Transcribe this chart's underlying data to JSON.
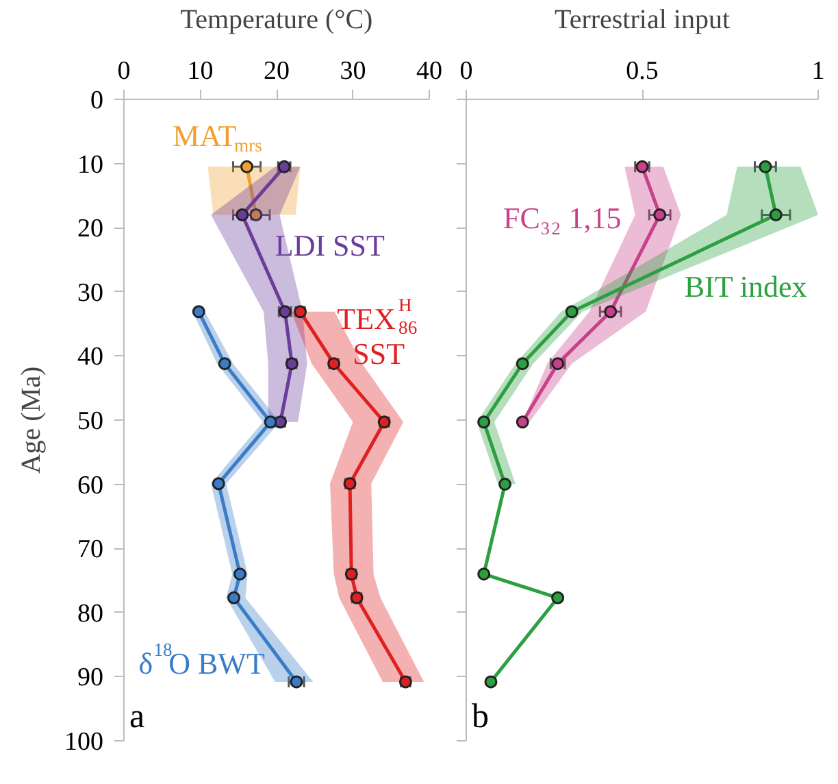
{
  "chart_data": [
    {
      "type": "line",
      "orientation": "horizontal",
      "xlabel": "Temperature (°C)",
      "ylabel": "Age (Ma)",
      "xlim": [
        0,
        40
      ],
      "xticks": [
        0,
        10,
        20,
        30,
        40
      ],
      "ylim": [
        100,
        0
      ],
      "yticks": [
        0,
        10,
        20,
        30,
        40,
        50,
        60,
        70,
        80,
        90,
        100
      ],
      "marker": "circle",
      "series": [
        {
          "name": "MAT$_{mrs}$",
          "color": "#f0a030",
          "x": [
            10.5,
            18.0
          ],
          "values": [
            16.1,
            17.3
          ],
          "errors": [
            1.8,
            1.8
          ],
          "lower": [
            11.0,
            11.7
          ],
          "upper": [
            23.1,
            22.5
          ]
        },
        {
          "name": "LDI SST",
          "color": "#6a3d9a",
          "x": [
            10.5,
            18.0,
            33.1,
            41.2,
            50.3
          ],
          "values": [
            21.0,
            15.5,
            21.1,
            22.0,
            20.5
          ],
          "errors": [
            0.8,
            1.2,
            0.8,
            0.6,
            0.6
          ],
          "lower": [
            19.8,
            11.4,
            18.3,
            18.9,
            18.9
          ],
          "upper": [
            23.1,
            20.4,
            23.4,
            24.0,
            22.8
          ]
        },
        {
          "name": "TEX$^{H}$$_{86}$\nSST",
          "color": "#e02020",
          "x": [
            33.1,
            41.2,
            50.3,
            59.9,
            74.0,
            77.7,
            90.8
          ],
          "values": [
            23.1,
            27.5,
            34.1,
            29.6,
            29.8,
            30.5,
            36.9
          ],
          "errors": [
            0.6,
            0.6,
            0.6,
            0.6,
            0.6,
            0.6,
            0.6
          ],
          "lower": [
            21.9,
            24.6,
            30.0,
            27.0,
            27.5,
            28.2,
            33.9
          ],
          "upper": [
            27.6,
            31.2,
            36.6,
            32.4,
            32.7,
            33.6,
            39.3
          ]
        },
        {
          "name": "δ$^{18}$O BWT",
          "color": "#3a7cc8",
          "x": [
            33.1,
            41.2,
            50.3,
            59.9,
            74.0,
            77.7,
            90.8
          ],
          "values": [
            9.8,
            13.2,
            19.2,
            12.4,
            15.2,
            14.4,
            22.6
          ],
          "errors": [
            null,
            null,
            null,
            null,
            null,
            null,
            1.0
          ],
          "lower": [
            9.0,
            12.2,
            18.2,
            11.4,
            14.2,
            13.4,
            19.8
          ],
          "upper": [
            10.6,
            14.3,
            20.4,
            13.4,
            16.2,
            15.9,
            24.8
          ]
        }
      ],
      "annotations": [
        "a"
      ]
    },
    {
      "type": "line",
      "orientation": "horizontal",
      "xlabel": "Terrestrial input",
      "xlim": [
        0,
        1
      ],
      "xticks": [
        0,
        0.5,
        1
      ],
      "ylim": [
        100,
        0
      ],
      "yticks": [
        0,
        10,
        20,
        30,
        40,
        50,
        60,
        70,
        80,
        90,
        100
      ],
      "tick_labels": "x",
      "marker": "circle",
      "series": [
        {
          "name": "FC₃₂ 1,15",
          "color": "#c8408a",
          "x": [
            10.5,
            18.0,
            33.1,
            41.2,
            50.3
          ],
          "values": [
            0.5,
            0.55,
            0.41,
            0.26,
            0.16
          ],
          "errors": [
            0.02,
            0.03,
            0.03,
            0.02,
            null
          ],
          "lower": [
            0.45,
            0.48,
            0.35,
            0.23,
            0.16
          ],
          "upper": [
            0.56,
            0.61,
            0.51,
            0.3,
            0.18
          ]
        },
        {
          "name": "BIT index",
          "color": "#2ca040",
          "x": [
            10.5,
            18.0,
            33.1,
            41.2,
            50.3,
            60.0,
            74.0,
            77.7,
            90.8
          ],
          "values": [
            0.85,
            0.88,
            0.3,
            0.16,
            0.05,
            0.11,
            0.05,
            0.26,
            0.07
          ],
          "errors": [
            0.03,
            0.04,
            null,
            null,
            null,
            null,
            null,
            null,
            null
          ],
          "lower": [
            0.77,
            0.74,
            0.27,
            0.14,
            0.03,
            0.09,
            null,
            null,
            null
          ],
          "upper": [
            0.95,
            1.0,
            0.33,
            0.19,
            0.08,
            0.14,
            null,
            null,
            null
          ]
        }
      ],
      "annotations": [
        "b"
      ]
    }
  ]
}
